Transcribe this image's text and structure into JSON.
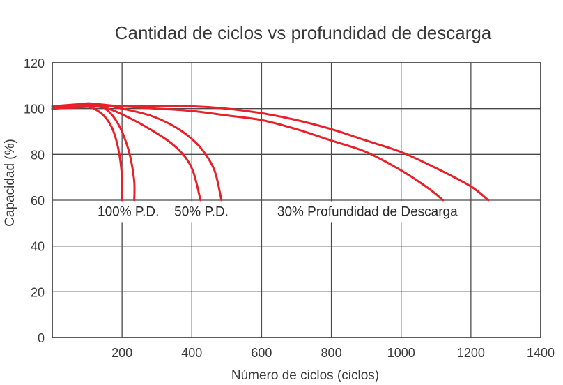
{
  "chart_data": {
    "type": "line",
    "title": "Cantidad de ciclos vs profundidad de descarga",
    "xlabel": "Número de ciclos (ciclos)",
    "ylabel": "Capacidad (%)",
    "xlim": [
      0,
      1400
    ],
    "ylim": [
      0,
      120
    ],
    "x_ticks": [
      200,
      400,
      600,
      800,
      1000,
      1200,
      1400
    ],
    "y_ticks": [
      0,
      20,
      40,
      60,
      80,
      100,
      120
    ],
    "grid": true,
    "line_color": "#e8202a",
    "annotations": [
      {
        "text": "100% P.D.",
        "x": 10,
        "y": 55
      },
      {
        "text": "50% P.D.",
        "x": 230,
        "y": 55
      },
      {
        "text": "30% Profundidad de Descarga",
        "x": 525,
        "y": 55
      }
    ],
    "series": [
      {
        "x": [
          0,
          60,
          100,
          140,
          170,
          190,
          200,
          200
        ],
        "y": [
          100,
          101,
          101,
          98,
          92,
          82,
          70,
          60
        ]
      },
      {
        "x": [
          0,
          80,
          120,
          160,
          190,
          210,
          225,
          235,
          235
        ],
        "y": [
          100,
          102,
          102,
          99,
          93,
          86,
          78,
          68,
          60
        ]
      },
      {
        "x": [
          0,
          100,
          160,
          220,
          280,
          340,
          380,
          405,
          425
        ],
        "y": [
          100,
          101,
          100,
          96,
          91,
          85,
          79,
          72,
          60
        ]
      },
      {
        "x": [
          0,
          120,
          200,
          280,
          340,
          390,
          430,
          465,
          485
        ],
        "y": [
          100,
          102,
          100,
          97,
          93,
          88,
          82,
          73,
          60
        ]
      },
      {
        "x": [
          0,
          100,
          200,
          300,
          400,
          500,
          600,
          700,
          800,
          900,
          1000,
          1080,
          1120
        ],
        "y": [
          101,
          102,
          101,
          100,
          99,
          97,
          95,
          91,
          86,
          81,
          73,
          65,
          60
        ]
      },
      {
        "x": [
          0,
          150,
          300,
          400,
          500,
          600,
          700,
          800,
          900,
          1000,
          1100,
          1200,
          1250
        ],
        "y": [
          100,
          101,
          101,
          101,
          100,
          98,
          95,
          91,
          86,
          81,
          74,
          66,
          60
        ]
      }
    ]
  }
}
